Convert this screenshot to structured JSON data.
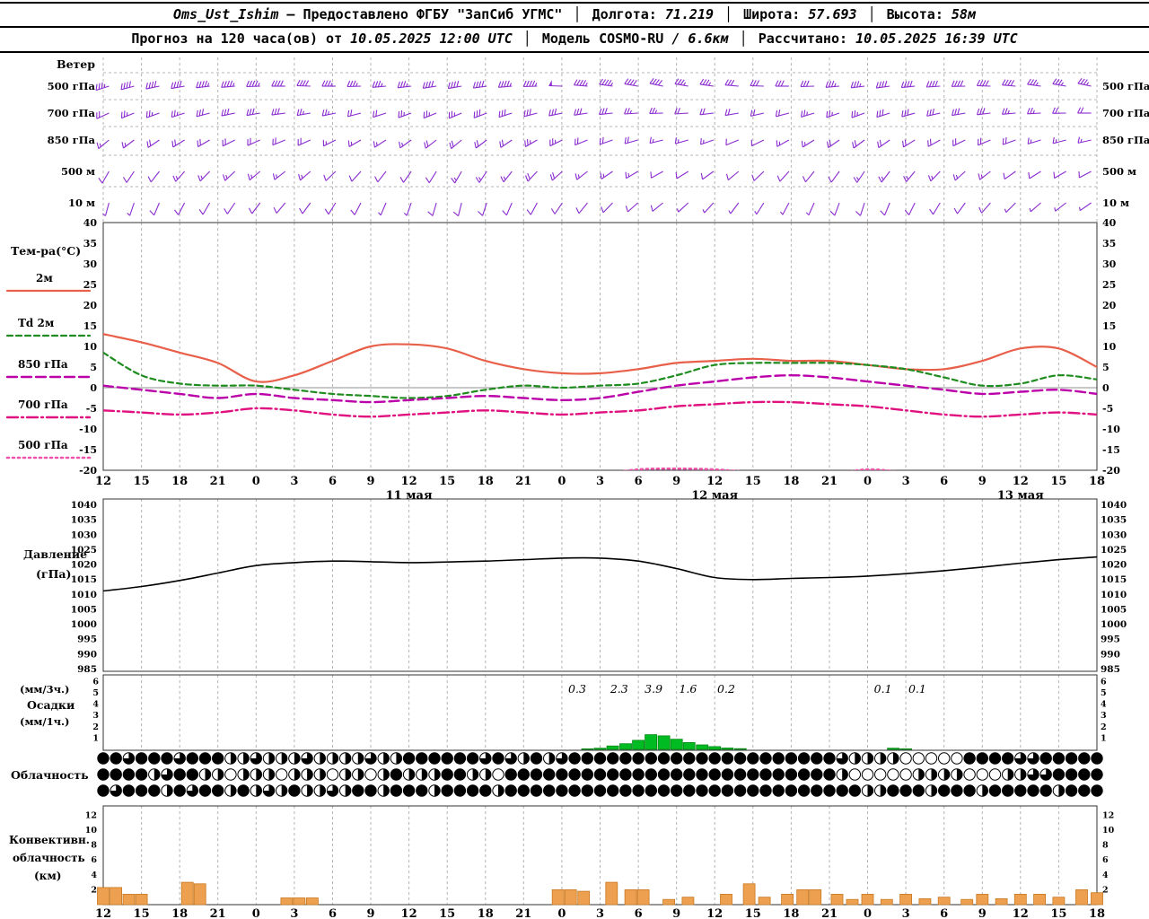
{
  "header": {
    "line1": [
      {
        "text": "Oms_Ust_Ishim",
        "style": "bi"
      },
      {
        "text": " – Предоставлено ФГБУ \"ЗапСиб УГМС\"",
        "style": "b"
      },
      {
        "text": " │ ",
        "style": "sep"
      },
      {
        "text": "Долгота: ",
        "style": "b"
      },
      {
        "text": "71.219",
        "style": "bi"
      },
      {
        "text": " │ ",
        "style": "sep"
      },
      {
        "text": "Широта: ",
        "style": "b"
      },
      {
        "text": "57.693",
        "style": "bi"
      },
      {
        "text": " │ ",
        "style": "sep"
      },
      {
        "text": "Высота: ",
        "style": "b"
      },
      {
        "text": "58м",
        "style": "bi"
      }
    ],
    "line2": [
      {
        "text": "Прогноз на 120 часа(ов) от ",
        "style": "b"
      },
      {
        "text": "10.05.2025 12:00 UTC",
        "style": "bi"
      },
      {
        "text": " │ ",
        "style": "sep"
      },
      {
        "text": "Модель ",
        "style": "b"
      },
      {
        "text": "COSMO-RU",
        "style": "b"
      },
      {
        "text": " / 6.6км",
        "style": "bi"
      },
      {
        "text": " │ ",
        "style": "sep"
      },
      {
        "text": "Рассчитано: ",
        "style": "b"
      },
      {
        "text": "10.05.2025 16:39 UTC",
        "style": "bi"
      }
    ]
  },
  "labels": {
    "wind_title": "Ветер",
    "wind_levels": [
      "500 гПа",
      "700 гПа",
      "850 гПа",
      "500 м",
      "10 м"
    ],
    "temp_title": "Тем-ра(°C)",
    "pressure_title": [
      "Давление",
      "(гПа)"
    ],
    "precip_title": [
      "(мм/3ч.)",
      "Осадки",
      "(мм/1ч.)"
    ],
    "cloud_title": "Облачность",
    "conv_title": [
      "Конвективн.",
      "облачность",
      "(км)"
    ]
  },
  "colors": {
    "wind": "#8a2bd0",
    "t2m": "#e8604a",
    "td2m": "#1f8c1f",
    "t850": "#bb00aa",
    "t700": "#e01080",
    "t500": "#ee55aa",
    "pressure": "#000000",
    "precip_fill": "#00bb22",
    "precip_edge": "#008811",
    "conv_fill": "#eda04f",
    "conv_edge": "#c87820",
    "grid": "#b4b4b4",
    "frame": "#333333",
    "zero_line": "#909090",
    "text": "#000000"
  },
  "chart_data": {
    "type": "meteogram",
    "x": {
      "hours": [
        "12",
        "15",
        "18",
        "21",
        "0",
        "3",
        "6",
        "9",
        "12",
        "15",
        "18",
        "21",
        "0",
        "3",
        "6",
        "9",
        "12",
        "15",
        "18",
        "21",
        "0",
        "3",
        "6",
        "9",
        "12",
        "15",
        "18"
      ],
      "dates": [
        {
          "tick": 8,
          "label": "11 мая"
        },
        {
          "tick": 16,
          "label": "12 мая"
        },
        {
          "tick": 24,
          "label": "13 мая"
        }
      ]
    },
    "wind": {
      "levels": [
        {
          "name": "500 гПа",
          "dirs": [
            252,
            255,
            258,
            260,
            263,
            265,
            268,
            270,
            272,
            270,
            268,
            265,
            263,
            261,
            260,
            262,
            265,
            268,
            272,
            275,
            278,
            280,
            282,
            280,
            278,
            275,
            272,
            270,
            268,
            265,
            263,
            262,
            264,
            266,
            269,
            272,
            275,
            278,
            280,
            282
          ],
          "speeds": [
            18,
            20,
            20,
            22,
            23,
            24,
            23,
            22,
            20,
            19,
            18,
            18,
            19,
            20,
            21,
            22,
            23,
            24,
            25,
            24,
            23,
            22,
            20,
            19,
            18,
            17,
            16,
            16,
            17,
            18,
            19,
            20,
            21,
            22,
            22,
            21,
            20,
            19,
            18,
            18
          ]
        },
        {
          "name": "700 гПа",
          "dirs": [
            245,
            248,
            250,
            252,
            255,
            258,
            260,
            262,
            260,
            258,
            255,
            252,
            250,
            248,
            247,
            249,
            252,
            255,
            258,
            261,
            264,
            266,
            268,
            266,
            263,
            260,
            257,
            255,
            253,
            251,
            250,
            252,
            254,
            257,
            260,
            263,
            265,
            267,
            269,
            270
          ],
          "speeds": [
            12,
            13,
            14,
            14,
            15,
            16,
            16,
            15,
            14,
            13,
            12,
            12,
            13,
            14,
            14,
            15,
            16,
            17,
            17,
            16,
            15,
            14,
            13,
            12,
            12,
            11,
            11,
            12,
            13,
            14,
            14,
            15,
            15,
            16,
            16,
            15,
            14,
            13,
            12,
            12
          ]
        },
        {
          "name": "850 гПа",
          "dirs": [
            230,
            233,
            236,
            238,
            240,
            243,
            246,
            248,
            246,
            243,
            240,
            237,
            234,
            232,
            230,
            233,
            236,
            240,
            244,
            248,
            251,
            254,
            256,
            254,
            251,
            248,
            244,
            241,
            238,
            235,
            233,
            235,
            238,
            241,
            244,
            247,
            250,
            253,
            255,
            257
          ],
          "speeds": [
            8,
            9,
            10,
            10,
            11,
            12,
            12,
            11,
            10,
            9,
            8,
            8,
            9,
            10,
            10,
            11,
            12,
            13,
            13,
            12,
            11,
            10,
            9,
            8,
            8,
            7,
            7,
            8,
            9,
            10,
            10,
            11,
            11,
            12,
            12,
            11,
            10,
            9,
            8,
            8
          ]
        },
        {
          "name": "500 м",
          "dirs": [
            210,
            214,
            218,
            221,
            224,
            227,
            230,
            232,
            229,
            226,
            222,
            218,
            215,
            212,
            210,
            214,
            218,
            223,
            228,
            232,
            236,
            239,
            241,
            238,
            234,
            230,
            226,
            222,
            219,
            216,
            214,
            217,
            220,
            224,
            228,
            232,
            235,
            238,
            240,
            242
          ],
          "speeds": [
            6,
            7,
            7,
            8,
            8,
            9,
            9,
            8,
            8,
            7,
            6,
            6,
            7,
            7,
            8,
            8,
            9,
            10,
            10,
            9,
            8,
            8,
            7,
            6,
            6,
            5,
            5,
            6,
            7,
            7,
            8,
            8,
            9,
            9,
            8,
            8,
            7,
            7,
            6,
            6
          ]
        },
        {
          "name": "10 м",
          "dirs": [
            195,
            199,
            203,
            207,
            210,
            214,
            217,
            220,
            216,
            212,
            207,
            203,
            199,
            196,
            194,
            198,
            203,
            208,
            214,
            219,
            224,
            228,
            231,
            227,
            222,
            217,
            212,
            208,
            204,
            200,
            198,
            202,
            206,
            211,
            216,
            221,
            225,
            229,
            232,
            235
          ],
          "speeds": [
            4,
            4,
            5,
            5,
            6,
            6,
            7,
            6,
            6,
            5,
            5,
            4,
            4,
            5,
            5,
            6,
            6,
            7,
            7,
            6,
            6,
            5,
            5,
            4,
            4,
            4,
            3,
            4,
            4,
            5,
            5,
            6,
            6,
            6,
            5,
            5,
            4,
            4,
            4,
            3
          ]
        }
      ]
    },
    "temperature": {
      "ylim": [
        -20,
        40
      ],
      "yticks": [
        40,
        35,
        30,
        25,
        20,
        15,
        10,
        5,
        0,
        -5,
        -10,
        -15,
        -20
      ],
      "series": [
        {
          "name": "2м",
          "key": "t2m",
          "style": "solid",
          "values": [
            13,
            11,
            8.5,
            6,
            1.5,
            3,
            6.5,
            10,
            10.5,
            9.5,
            6.5,
            4.5,
            3.5,
            3.5,
            4.5,
            6,
            6.5,
            7,
            6.5,
            6.5,
            5.5,
            4.5,
            4.5,
            6.5,
            9.5,
            9.5,
            5
          ]
        },
        {
          "name": "Td 2м",
          "key": "td2m",
          "style": "dashed",
          "values": [
            8.5,
            3,
            1,
            0.5,
            0.5,
            -0.5,
            -1.5,
            -2,
            -2.5,
            -2,
            -0.5,
            0.5,
            0,
            0.5,
            1,
            3,
            5.5,
            6,
            6,
            6,
            5.5,
            4.5,
            2.5,
            0.5,
            1,
            3,
            2
          ]
        },
        {
          "name": "850 гПа",
          "key": "t850",
          "style": "longdash",
          "values": [
            0.5,
            -0.5,
            -1.5,
            -2.5,
            -1.5,
            -2.5,
            -3,
            -3.5,
            -3,
            -2.5,
            -2,
            -2.5,
            -3,
            -2.5,
            -1,
            0.5,
            1.5,
            2.5,
            3,
            2.5,
            1.5,
            0.5,
            -0.5,
            -1.5,
            -1,
            -0.5,
            -1.5
          ]
        },
        {
          "name": "700 гПа",
          "key": "t700",
          "style": "dashdot",
          "values": [
            -5.5,
            -6,
            -6.5,
            -6,
            -5,
            -5.5,
            -6.5,
            -7,
            -6.5,
            -6,
            -5.5,
            -6,
            -6.5,
            -6,
            -5.5,
            -4.5,
            -4,
            -3.5,
            -3.5,
            -4,
            -4.5,
            -5.5,
            -6.5,
            -7,
            -6.5,
            -6,
            -6.5
          ]
        },
        {
          "name": "500 гПа",
          "key": "t500",
          "style": "dotted",
          "values": [
            -22,
            -22,
            -21.5,
            -21,
            -21,
            -21.5,
            -22,
            -22,
            -21.5,
            -21,
            -21,
            -21.5,
            -22,
            -21,
            -19.8,
            -19.6,
            -19.8,
            -20.5,
            -21,
            -21,
            -19.8,
            -20.5,
            -21,
            -21.5,
            -22,
            -22,
            -22
          ]
        }
      ]
    },
    "pressure": {
      "ylim": [
        985,
        1040
      ],
      "yticks": [
        1040,
        1035,
        1030,
        1025,
        1020,
        1015,
        1010,
        1005,
        1000,
        995,
        990,
        985
      ],
      "values": [
        1011,
        1012.5,
        1014.5,
        1017,
        1019.5,
        1020.5,
        1021,
        1020.8,
        1020.5,
        1020.7,
        1021,
        1021.5,
        1022,
        1022,
        1021,
        1018.5,
        1015.5,
        1014.8,
        1015.2,
        1015.5,
        1016,
        1016.8,
        1017.8,
        1019,
        1020.3,
        1021.5,
        1022.4
      ]
    },
    "precipitation": {
      "yticks": [
        6,
        5,
        4,
        3,
        2,
        1
      ],
      "tick_labels": [
        {
          "tick": 12.4,
          "text": "0.3"
        },
        {
          "tick": 13.5,
          "text": "2.3"
        },
        {
          "tick": 14.4,
          "text": "3.9"
        },
        {
          "tick": 15.3,
          "text": "1.6"
        },
        {
          "tick": 16.3,
          "text": "0.2"
        },
        {
          "tick": 20.4,
          "text": "0.1"
        },
        {
          "tick": 21.3,
          "text": "0.1"
        }
      ],
      "bars": [
        {
          "tick": 12.67,
          "h": 0.05
        },
        {
          "tick": 13.0,
          "h": 0.1
        },
        {
          "tick": 13.33,
          "h": 0.3
        },
        {
          "tick": 13.67,
          "h": 0.5
        },
        {
          "tick": 14.0,
          "h": 0.8
        },
        {
          "tick": 14.33,
          "h": 1.3
        },
        {
          "tick": 14.67,
          "h": 1.2
        },
        {
          "tick": 15.0,
          "h": 0.9
        },
        {
          "tick": 15.33,
          "h": 0.6
        },
        {
          "tick": 15.67,
          "h": 0.4
        },
        {
          "tick": 16.0,
          "h": 0.25
        },
        {
          "tick": 16.33,
          "h": 0.12
        },
        {
          "tick": 16.67,
          "h": 0.06
        },
        {
          "tick": 20.67,
          "h": 0.1
        },
        {
          "tick": 21.0,
          "h": 0.05
        }
      ]
    },
    "cloudiness": {
      "rows": [
        [
          "4434443444",
          "2232223222",
          "2322444444",
          "3432423444",
          "4444444444",
          "4444444432",
          "2220000044",
          "443344444"
        ],
        [
          "4444234422",
          "0222022202",
          "2024222442",
          "2044444444",
          "4444444444",
          "4444444420",
          "0000222200",
          "022334444"
        ],
        [
          "4344424344",
          "2423242232",
          "4424442444",
          "4244444444",
          "4444444444",
          "4444444444",
          "2244424442",
          "444442444"
        ]
      ]
    },
    "convective": {
      "yticks": [
        12,
        10,
        8,
        6,
        4,
        2
      ],
      "bars": [
        {
          "tick": 0,
          "h": 2.3
        },
        {
          "tick": 0.33,
          "h": 2.3
        },
        {
          "tick": 0.67,
          "h": 1.4
        },
        {
          "tick": 1,
          "h": 1.4
        },
        {
          "tick": 2.2,
          "h": 3.0
        },
        {
          "tick": 2.53,
          "h": 2.8
        },
        {
          "tick": 4.8,
          "h": 0.9
        },
        {
          "tick": 5.13,
          "h": 0.9
        },
        {
          "tick": 5.47,
          "h": 0.9
        },
        {
          "tick": 11.9,
          "h": 2.0
        },
        {
          "tick": 12.23,
          "h": 2.0
        },
        {
          "tick": 12.57,
          "h": 1.8
        },
        {
          "tick": 13.3,
          "h": 3.0
        },
        {
          "tick": 13.8,
          "h": 2.0
        },
        {
          "tick": 14.13,
          "h": 2.0
        },
        {
          "tick": 14.8,
          "h": 0.7
        },
        {
          "tick": 15.3,
          "h": 1.0
        },
        {
          "tick": 16.3,
          "h": 1.4
        },
        {
          "tick": 16.9,
          "h": 2.8
        },
        {
          "tick": 17.3,
          "h": 1.0
        },
        {
          "tick": 17.9,
          "h": 1.4
        },
        {
          "tick": 18.3,
          "h": 2.0
        },
        {
          "tick": 18.63,
          "h": 2.0
        },
        {
          "tick": 19.2,
          "h": 1.4
        },
        {
          "tick": 19.6,
          "h": 0.7
        },
        {
          "tick": 20,
          "h": 1.4
        },
        {
          "tick": 20.5,
          "h": 0.7
        },
        {
          "tick": 21,
          "h": 1.4
        },
        {
          "tick": 21.5,
          "h": 0.8
        },
        {
          "tick": 22,
          "h": 1.0
        },
        {
          "tick": 22.6,
          "h": 0.7
        },
        {
          "tick": 23,
          "h": 1.4
        },
        {
          "tick": 23.5,
          "h": 0.8
        },
        {
          "tick": 24,
          "h": 1.4
        },
        {
          "tick": 24.5,
          "h": 1.4
        },
        {
          "tick": 25,
          "h": 1.0
        },
        {
          "tick": 25.6,
          "h": 2.0
        },
        {
          "tick": 26,
          "h": 1.6
        }
      ]
    }
  }
}
